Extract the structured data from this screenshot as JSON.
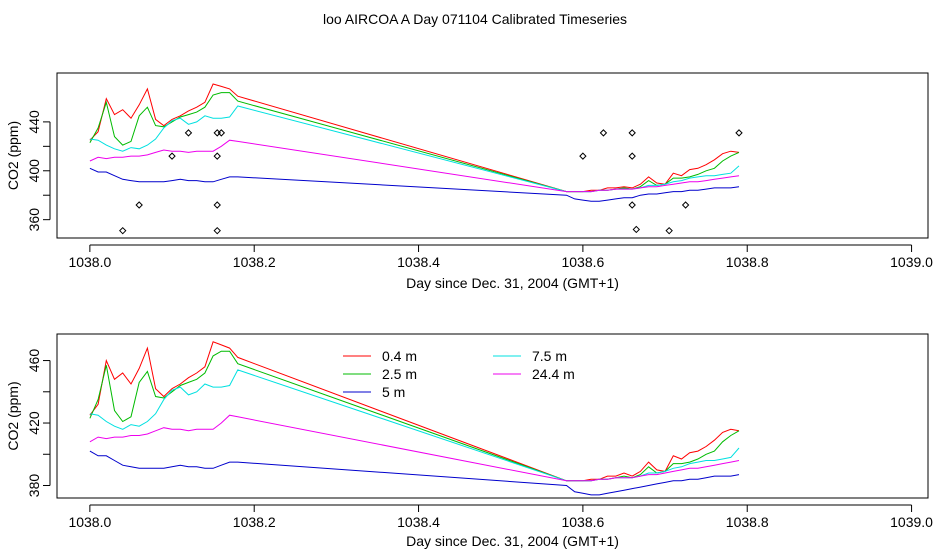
{
  "title": "loo AIRCOA A  Day 071104  Calibrated Timeseries",
  "colors": {
    "0.4 m": "#ff0000",
    "2.5 m": "#00bb00",
    "5 m": "#0000cc",
    "7.5 m": "#00e0e0",
    "24.4 m": "#ee00ee",
    "markers": "#000000"
  },
  "chart_data": [
    {
      "type": "line",
      "xlabel": "Day since Dec. 31, 2004 (GMT+1)",
      "ylabel": "CO2 (ppm)",
      "xlim": [
        1037.96,
        1039.02
      ],
      "ylim": [
        345,
        480
      ],
      "xticks": [
        1038.0,
        1038.2,
        1038.4,
        1038.6,
        1038.8,
        1039.0
      ],
      "xtick_labels": [
        "1038.0",
        "1038.2",
        "1038.4",
        "1038.6",
        "1038.8",
        "1039.0"
      ],
      "yticks": [
        360,
        380,
        400,
        420,
        440
      ],
      "ytick_labels": [
        "360",
        "",
        "400",
        "",
        "440"
      ],
      "legend": false,
      "series": [
        {
          "name": "0.4 m",
          "x": [
            1038.0,
            1038.01,
            1038.02,
            1038.03,
            1038.04,
            1038.05,
            1038.06,
            1038.07,
            1038.08,
            1038.09,
            1038.1,
            1038.11,
            1038.12,
            1038.13,
            1038.14,
            1038.15,
            1038.16,
            1038.17,
            1038.18,
            1038.58,
            1038.59,
            1038.6,
            1038.61,
            1038.62,
            1038.63,
            1038.64,
            1038.65,
            1038.66,
            1038.67,
            1038.68,
            1038.69,
            1038.7,
            1038.71,
            1038.72,
            1038.73,
            1038.74,
            1038.75,
            1038.76,
            1038.77,
            1038.78,
            1038.79
          ],
          "y": [
            425,
            432,
            459,
            446,
            450,
            443,
            454,
            467,
            442,
            437,
            442,
            445,
            449,
            452,
            456,
            471,
            469,
            467,
            461,
            383,
            383,
            383,
            384,
            384,
            386,
            386,
            387,
            386,
            389,
            395,
            390,
            389,
            398,
            396,
            401,
            402,
            405,
            409,
            414,
            416,
            415
          ]
        },
        {
          "name": "2.5 m",
          "x": [
            1038.0,
            1038.01,
            1038.02,
            1038.03,
            1038.04,
            1038.05,
            1038.06,
            1038.07,
            1038.08,
            1038.09,
            1038.1,
            1038.11,
            1038.12,
            1038.13,
            1038.14,
            1038.15,
            1038.16,
            1038.17,
            1038.18,
            1038.58,
            1038.59,
            1038.6,
            1038.61,
            1038.62,
            1038.63,
            1038.64,
            1038.65,
            1038.66,
            1038.67,
            1038.68,
            1038.69,
            1038.7,
            1038.71,
            1038.72,
            1038.73,
            1038.74,
            1038.75,
            1038.76,
            1038.77,
            1038.78,
            1038.79
          ],
          "y": [
            423,
            435,
            456,
            428,
            421,
            424,
            445,
            452,
            437,
            436,
            440,
            444,
            446,
            448,
            452,
            462,
            464,
            464,
            457,
            383,
            383,
            383,
            383,
            384,
            384,
            385,
            386,
            385,
            387,
            392,
            388,
            389,
            394,
            394,
            395,
            397,
            400,
            402,
            408,
            412,
            415
          ]
        },
        {
          "name": "5 m",
          "x": [
            1038.0,
            1038.01,
            1038.02,
            1038.03,
            1038.04,
            1038.05,
            1038.06,
            1038.07,
            1038.08,
            1038.09,
            1038.1,
            1038.11,
            1038.12,
            1038.13,
            1038.14,
            1038.15,
            1038.16,
            1038.17,
            1038.18,
            1038.58,
            1038.59,
            1038.6,
            1038.61,
            1038.62,
            1038.63,
            1038.64,
            1038.65,
            1038.66,
            1038.67,
            1038.68,
            1038.69,
            1038.7,
            1038.71,
            1038.72,
            1038.73,
            1038.74,
            1038.75,
            1038.76,
            1038.77,
            1038.78,
            1038.79
          ],
          "y": [
            402,
            399,
            399,
            396,
            393,
            392,
            391,
            391,
            391,
            391,
            392,
            393,
            392,
            392,
            391,
            391,
            393,
            395,
            395,
            380,
            377,
            376,
            375,
            375,
            376,
            377,
            378,
            378,
            380,
            381,
            381,
            382,
            383,
            383,
            384,
            384,
            385,
            386,
            386,
            386,
            387
          ]
        },
        {
          "name": "7.5 m",
          "x": [
            1038.0,
            1038.01,
            1038.02,
            1038.03,
            1038.04,
            1038.05,
            1038.06,
            1038.07,
            1038.08,
            1038.09,
            1038.1,
            1038.11,
            1038.12,
            1038.13,
            1038.14,
            1038.15,
            1038.16,
            1038.17,
            1038.18,
            1038.58,
            1038.59,
            1038.6,
            1038.61,
            1038.62,
            1038.63,
            1038.64,
            1038.65,
            1038.66,
            1038.67,
            1038.68,
            1038.69,
            1038.7,
            1038.71,
            1038.72,
            1038.73,
            1038.74,
            1038.75,
            1038.76,
            1038.77,
            1038.78,
            1038.79
          ],
          "y": [
            426,
            425,
            421,
            418,
            416,
            419,
            418,
            421,
            426,
            435,
            441,
            443,
            438,
            440,
            445,
            443,
            443,
            444,
            453,
            383,
            383,
            383,
            383,
            384,
            384,
            385,
            385,
            385,
            386,
            388,
            388,
            389,
            391,
            392,
            394,
            395,
            396,
            396,
            397,
            398,
            404
          ]
        },
        {
          "name": "24.4 m",
          "x": [
            1038.0,
            1038.01,
            1038.02,
            1038.03,
            1038.04,
            1038.05,
            1038.06,
            1038.07,
            1038.08,
            1038.09,
            1038.1,
            1038.11,
            1038.12,
            1038.13,
            1038.14,
            1038.15,
            1038.16,
            1038.17,
            1038.18,
            1038.58,
            1038.59,
            1038.6,
            1038.61,
            1038.62,
            1038.63,
            1038.64,
            1038.65,
            1038.66,
            1038.67,
            1038.68,
            1038.69,
            1038.7,
            1038.71,
            1038.72,
            1038.73,
            1038.74,
            1038.75,
            1038.76,
            1038.77,
            1038.78,
            1038.79
          ],
          "y": [
            408,
            411,
            410,
            411,
            411,
            412,
            412,
            413,
            415,
            417,
            416,
            416,
            415,
            416,
            416,
            416,
            420,
            425,
            424,
            383,
            383,
            383,
            383,
            384,
            384,
            385,
            385,
            385,
            386,
            387,
            387,
            388,
            389,
            390,
            391,
            391,
            392,
            393,
            394,
            395,
            396
          ]
        }
      ],
      "markers": {
        "x": [
          1038.04,
          1038.06,
          1038.1,
          1038.12,
          1038.155,
          1038.155,
          1038.155,
          1038.155,
          1038.16,
          1038.6,
          1038.625,
          1038.66,
          1038.66,
          1038.66,
          1038.665,
          1038.705,
          1038.725,
          1038.79
        ],
        "y": [
          351,
          372,
          412,
          431,
          431,
          412,
          372,
          351,
          431,
          412,
          431,
          431,
          412,
          372,
          352,
          351,
          372,
          431
        ]
      }
    },
    {
      "type": "line",
      "xlabel": "Day since Dec. 31, 2004 (GMT+1)",
      "ylabel": "CO2 (ppm)",
      "xlim": [
        1037.96,
        1039.02
      ],
      "ylim": [
        372,
        477
      ],
      "xticks": [
        1038.0,
        1038.2,
        1038.4,
        1038.6,
        1038.8,
        1039.0
      ],
      "xtick_labels": [
        "1038.0",
        "1038.2",
        "1038.4",
        "1038.6",
        "1038.8",
        "1039.0"
      ],
      "yticks": [
        380,
        400,
        420,
        440,
        460
      ],
      "ytick_labels": [
        "380",
        "",
        "420",
        "",
        "460"
      ],
      "legend": true,
      "legend_order": [
        "0.4 m",
        "2.5 m",
        "5 m",
        "7.5 m",
        "24.4 m"
      ],
      "series": [
        {
          "name": "0.4 m",
          "x": [
            1038.0,
            1038.01,
            1038.02,
            1038.03,
            1038.04,
            1038.05,
            1038.06,
            1038.07,
            1038.08,
            1038.09,
            1038.1,
            1038.11,
            1038.12,
            1038.13,
            1038.14,
            1038.15,
            1038.16,
            1038.17,
            1038.18,
            1038.58,
            1038.59,
            1038.6,
            1038.61,
            1038.62,
            1038.63,
            1038.64,
            1038.65,
            1038.66,
            1038.67,
            1038.68,
            1038.69,
            1038.7,
            1038.71,
            1038.72,
            1038.73,
            1038.74,
            1038.75,
            1038.76,
            1038.77,
            1038.78,
            1038.79
          ],
          "y": [
            425,
            432,
            460,
            448,
            452,
            445,
            455,
            468,
            442,
            437,
            442,
            445,
            449,
            452,
            456,
            472,
            470,
            468,
            462,
            383,
            383,
            383,
            384,
            384,
            386,
            386,
            388,
            386,
            389,
            395,
            390,
            389,
            399,
            397,
            401,
            402,
            405,
            409,
            414,
            416,
            415
          ]
        },
        {
          "name": "2.5 m",
          "x": [
            1038.0,
            1038.01,
            1038.02,
            1038.03,
            1038.04,
            1038.05,
            1038.06,
            1038.07,
            1038.08,
            1038.09,
            1038.1,
            1038.11,
            1038.12,
            1038.13,
            1038.14,
            1038.15,
            1038.16,
            1038.17,
            1038.18,
            1038.58,
            1038.59,
            1038.6,
            1038.61,
            1038.62,
            1038.63,
            1038.64,
            1038.65,
            1038.66,
            1038.67,
            1038.68,
            1038.69,
            1038.7,
            1038.71,
            1038.72,
            1038.73,
            1038.74,
            1038.75,
            1038.76,
            1038.77,
            1038.78,
            1038.79
          ],
          "y": [
            423,
            435,
            457,
            428,
            421,
            424,
            446,
            453,
            437,
            436,
            440,
            444,
            446,
            448,
            452,
            463,
            466,
            466,
            458,
            383,
            383,
            383,
            383,
            384,
            384,
            385,
            386,
            385,
            387,
            392,
            388,
            389,
            394,
            394,
            395,
            397,
            400,
            402,
            408,
            412,
            415
          ]
        },
        {
          "name": "5 m",
          "x": [
            1038.0,
            1038.01,
            1038.02,
            1038.03,
            1038.04,
            1038.05,
            1038.06,
            1038.07,
            1038.08,
            1038.09,
            1038.1,
            1038.11,
            1038.12,
            1038.13,
            1038.14,
            1038.15,
            1038.16,
            1038.17,
            1038.18,
            1038.58,
            1038.59,
            1038.6,
            1038.61,
            1038.62,
            1038.63,
            1038.64,
            1038.65,
            1038.66,
            1038.67,
            1038.68,
            1038.69,
            1038.7,
            1038.71,
            1038.72,
            1038.73,
            1038.74,
            1038.75,
            1038.76,
            1038.77,
            1038.78,
            1038.79
          ],
          "y": [
            402,
            399,
            399,
            396,
            393,
            392,
            391,
            391,
            391,
            391,
            392,
            393,
            392,
            392,
            391,
            391,
            393,
            395,
            395,
            380,
            376,
            375,
            374,
            374,
            375,
            376,
            377,
            378,
            379,
            380,
            381,
            382,
            383,
            383,
            384,
            384,
            385,
            386,
            386,
            386,
            387
          ]
        },
        {
          "name": "7.5 m",
          "x": [
            1038.0,
            1038.01,
            1038.02,
            1038.03,
            1038.04,
            1038.05,
            1038.06,
            1038.07,
            1038.08,
            1038.09,
            1038.1,
            1038.11,
            1038.12,
            1038.13,
            1038.14,
            1038.15,
            1038.16,
            1038.17,
            1038.18,
            1038.58,
            1038.59,
            1038.6,
            1038.61,
            1038.62,
            1038.63,
            1038.64,
            1038.65,
            1038.66,
            1038.67,
            1038.68,
            1038.69,
            1038.7,
            1038.71,
            1038.72,
            1038.73,
            1038.74,
            1038.75,
            1038.76,
            1038.77,
            1038.78,
            1038.79
          ],
          "y": [
            426,
            425,
            421,
            418,
            416,
            419,
            418,
            421,
            426,
            435,
            441,
            443,
            438,
            440,
            445,
            443,
            443,
            444,
            454,
            383,
            383,
            383,
            383,
            384,
            384,
            385,
            385,
            385,
            386,
            388,
            388,
            389,
            391,
            392,
            394,
            395,
            396,
            396,
            397,
            398,
            404
          ]
        },
        {
          "name": "24.4 m",
          "x": [
            1038.0,
            1038.01,
            1038.02,
            1038.03,
            1038.04,
            1038.05,
            1038.06,
            1038.07,
            1038.08,
            1038.09,
            1038.1,
            1038.11,
            1038.12,
            1038.13,
            1038.14,
            1038.15,
            1038.16,
            1038.17,
            1038.18,
            1038.58,
            1038.59,
            1038.6,
            1038.61,
            1038.62,
            1038.63,
            1038.64,
            1038.65,
            1038.66,
            1038.67,
            1038.68,
            1038.69,
            1038.7,
            1038.71,
            1038.72,
            1038.73,
            1038.74,
            1038.75,
            1038.76,
            1038.77,
            1038.78,
            1038.79
          ],
          "y": [
            408,
            411,
            410,
            411,
            411,
            412,
            412,
            413,
            415,
            417,
            416,
            416,
            415,
            416,
            416,
            416,
            420,
            425,
            424,
            383,
            383,
            383,
            383,
            384,
            384,
            385,
            385,
            385,
            386,
            387,
            387,
            388,
            389,
            390,
            391,
            391,
            392,
            393,
            394,
            395,
            396
          ]
        }
      ]
    }
  ]
}
